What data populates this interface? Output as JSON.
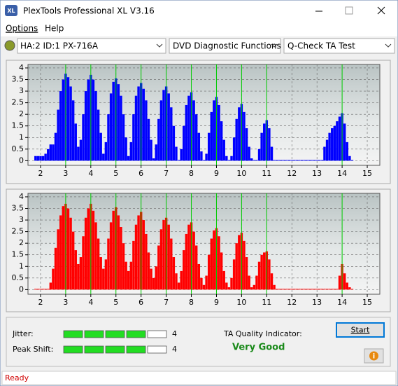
{
  "window": {
    "title": "PlexTools Professional XL V3.16"
  },
  "menu": [
    "Options",
    "Help"
  ],
  "toolbar": {
    "drive": "HA:2 ID:1  PX-716A",
    "function": "DVD Diagnostic Functions",
    "test": "Q-Check TA Test"
  },
  "chart_data": [
    {
      "type": "bar",
      "color": "#0000ff",
      "xlim": [
        1.5,
        15.5
      ],
      "xticks": [
        2,
        3,
        4,
        5,
        6,
        7,
        8,
        9,
        10,
        11,
        12,
        13,
        14,
        15
      ],
      "ylim": [
        -0.2,
        4.15
      ],
      "yticks": [
        0,
        0.5,
        1,
        1.5,
        2,
        2.5,
        3,
        3.5,
        4
      ],
      "grid": true,
      "reference_lines": [
        3,
        4,
        5,
        6,
        7,
        8,
        9,
        10,
        11,
        14
      ],
      "reference_color": "#00cc00",
      "x": [
        1.8,
        1.9,
        2,
        2.1,
        2.2,
        2.3,
        2.4,
        2.5,
        2.6,
        2.7,
        2.8,
        2.9,
        3,
        3.1,
        3.2,
        3.3,
        3.4,
        3.5,
        3.6,
        3.7,
        3.8,
        3.9,
        4,
        4.1,
        4.2,
        4.3,
        4.4,
        4.5,
        4.6,
        4.7,
        4.8,
        4.9,
        5,
        5.1,
        5.2,
        5.3,
        5.4,
        5.5,
        5.6,
        5.7,
        5.8,
        5.9,
        6,
        6.1,
        6.2,
        6.3,
        6.4,
        6.5,
        6.6,
        6.7,
        6.8,
        6.9,
        7,
        7.1,
        7.2,
        7.3,
        7.4,
        7.5,
        7.6,
        7.7,
        7.8,
        7.9,
        8,
        8.1,
        8.2,
        8.3,
        8.4,
        8.5,
        8.6,
        8.7,
        8.8,
        8.9,
        9,
        9.1,
        9.2,
        9.3,
        9.4,
        9.5,
        9.6,
        9.7,
        9.8,
        9.9,
        10,
        10.1,
        10.2,
        10.3,
        10.4,
        10.5,
        10.6,
        10.7,
        10.8,
        10.9,
        11,
        11.1,
        11.2,
        11.3,
        11.4,
        11.5,
        11.6,
        11.7,
        11.8,
        11.9,
        12,
        12.1,
        12.2,
        12.3,
        12.4,
        12.5,
        12.6,
        12.7,
        12.8,
        12.9,
        13,
        13.1,
        13.2,
        13.3,
        13.4,
        13.5,
        13.6,
        13.7,
        13.8,
        13.9,
        14,
        14.1,
        14.2,
        14.3,
        14.4
      ],
      "values": [
        0.2,
        0.2,
        0.2,
        0.2,
        0.3,
        0.5,
        0.7,
        0.7,
        1.2,
        2.2,
        3,
        3.5,
        3.75,
        3.6,
        3.2,
        2.6,
        1.6,
        0.6,
        0.9,
        2,
        3,
        3.5,
        3.7,
        3.5,
        3,
        2.2,
        1.2,
        0.3,
        0.8,
        2,
        2.9,
        3.4,
        3.55,
        3.3,
        2.8,
        2,
        1,
        0.2,
        0.8,
        2,
        2.8,
        3.2,
        3.35,
        3.1,
        2.6,
        1.8,
        0.9,
        0.1,
        0.7,
        1.8,
        2.6,
        3.05,
        3.2,
        2.9,
        2.3,
        1.5,
        0.6,
        0,
        0.5,
        1.5,
        2.4,
        2.8,
        2.95,
        2.6,
        2,
        1.2,
        0.4,
        0,
        0.3,
        1.2,
        2.1,
        2.6,
        2.75,
        2.4,
        1.7,
        0.9,
        0.2,
        0,
        0.2,
        1,
        1.8,
        2.3,
        2.45,
        2.1,
        1.4,
        0.6,
        0.1,
        0,
        0,
        0.5,
        1.2,
        1.6,
        1.75,
        1.4,
        0.6,
        0,
        0,
        0,
        0,
        0,
        0,
        0,
        0,
        0,
        0,
        0,
        0,
        0,
        0,
        0,
        0,
        0,
        0,
        0,
        0,
        0.6,
        0.9,
        1.2,
        1.4,
        1.5,
        1.7,
        1.9,
        2.05,
        1.6,
        0.8,
        0.2,
        0
      ]
    },
    {
      "type": "bar",
      "color": "#ff0000",
      "xlim": [
        1.5,
        15.5
      ],
      "xticks": [
        2,
        3,
        4,
        5,
        6,
        7,
        8,
        9,
        10,
        11,
        12,
        13,
        14,
        15
      ],
      "ylim": [
        -0.2,
        4.15
      ],
      "yticks": [
        0,
        0.5,
        1,
        1.5,
        2,
        2.5,
        3,
        3.5,
        4
      ],
      "grid": true,
      "reference_lines": [
        3,
        4,
        5,
        6,
        7,
        8,
        9,
        10,
        11,
        14
      ],
      "reference_color": "#00cc00",
      "x": [
        1.8,
        1.9,
        2,
        2.1,
        2.2,
        2.3,
        2.4,
        2.5,
        2.6,
        2.7,
        2.8,
        2.9,
        3,
        3.1,
        3.2,
        3.3,
        3.4,
        3.5,
        3.6,
        3.7,
        3.8,
        3.9,
        4,
        4.1,
        4.2,
        4.3,
        4.4,
        4.5,
        4.6,
        4.7,
        4.8,
        4.9,
        5,
        5.1,
        5.2,
        5.3,
        5.4,
        5.5,
        5.6,
        5.7,
        5.8,
        5.9,
        6,
        6.1,
        6.2,
        6.3,
        6.4,
        6.5,
        6.6,
        6.7,
        6.8,
        6.9,
        7,
        7.1,
        7.2,
        7.3,
        7.4,
        7.5,
        7.6,
        7.7,
        7.8,
        7.9,
        8,
        8.1,
        8.2,
        8.3,
        8.4,
        8.5,
        8.6,
        8.7,
        8.8,
        8.9,
        9,
        9.1,
        9.2,
        9.3,
        9.4,
        9.5,
        9.6,
        9.7,
        9.8,
        9.9,
        10,
        10.1,
        10.2,
        10.3,
        10.4,
        10.5,
        10.6,
        10.7,
        10.8,
        10.9,
        11,
        11.1,
        11.2,
        11.3,
        11.4,
        11.5,
        11.6,
        11.7,
        11.8,
        11.9,
        12,
        12.1,
        12.2,
        12.3,
        12.4,
        12.5,
        12.6,
        12.7,
        12.8,
        12.9,
        13,
        13.1,
        13.2,
        13.3,
        13.4,
        13.5,
        13.6,
        13.7,
        13.8,
        13.9,
        14,
        14.1,
        14.2,
        14.3,
        14.4
      ],
      "values": [
        0,
        0,
        0,
        0,
        0,
        0,
        0.3,
        0.9,
        1.8,
        2.6,
        3.2,
        3.6,
        3.7,
        3.5,
        3.1,
        2.5,
        1.7,
        1.1,
        1.4,
        2.3,
        3.1,
        3.5,
        3.7,
        3.4,
        2.9,
        2.2,
        1.4,
        0.9,
        1.3,
        2.2,
        2.9,
        3.4,
        3.55,
        3.2,
        2.7,
        2,
        1.2,
        0.8,
        1.2,
        2.1,
        2.8,
        3.2,
        3.35,
        3,
        2.4,
        1.6,
        0.9,
        0.5,
        1,
        1.9,
        2.6,
        3,
        3.1,
        2.8,
        2.2,
        1.4,
        0.7,
        0.3,
        0.8,
        1.7,
        2.4,
        2.8,
        2.9,
        2.5,
        1.9,
        1.1,
        0.5,
        0.2,
        0.6,
        1.5,
        2.2,
        2.55,
        2.65,
        2.3,
        1.6,
        0.8,
        0.3,
        0.1,
        0.5,
        1.3,
        2,
        2.35,
        2.45,
        2.1,
        1.4,
        0.6,
        0.1,
        0.2,
        0.6,
        1.2,
        1.5,
        1.6,
        1.65,
        1.3,
        0.7,
        0.2,
        0,
        0,
        0,
        0,
        0,
        0,
        0,
        0,
        0,
        0,
        0,
        0,
        0,
        0,
        0,
        0,
        0,
        0,
        0,
        0,
        0,
        0,
        0,
        0,
        0,
        0.6,
        1.1,
        0.7,
        0.3,
        0.1,
        0
      ]
    }
  ],
  "results": {
    "jitter": {
      "label": "Jitter:",
      "value": 4
    },
    "peak_shift": {
      "label": "Peak Shift:",
      "value": 4
    },
    "quality_label": "TA Quality Indicator:",
    "quality": "Very Good"
  },
  "buttons": {
    "start": "Start",
    "info": "i"
  },
  "status": "Ready"
}
